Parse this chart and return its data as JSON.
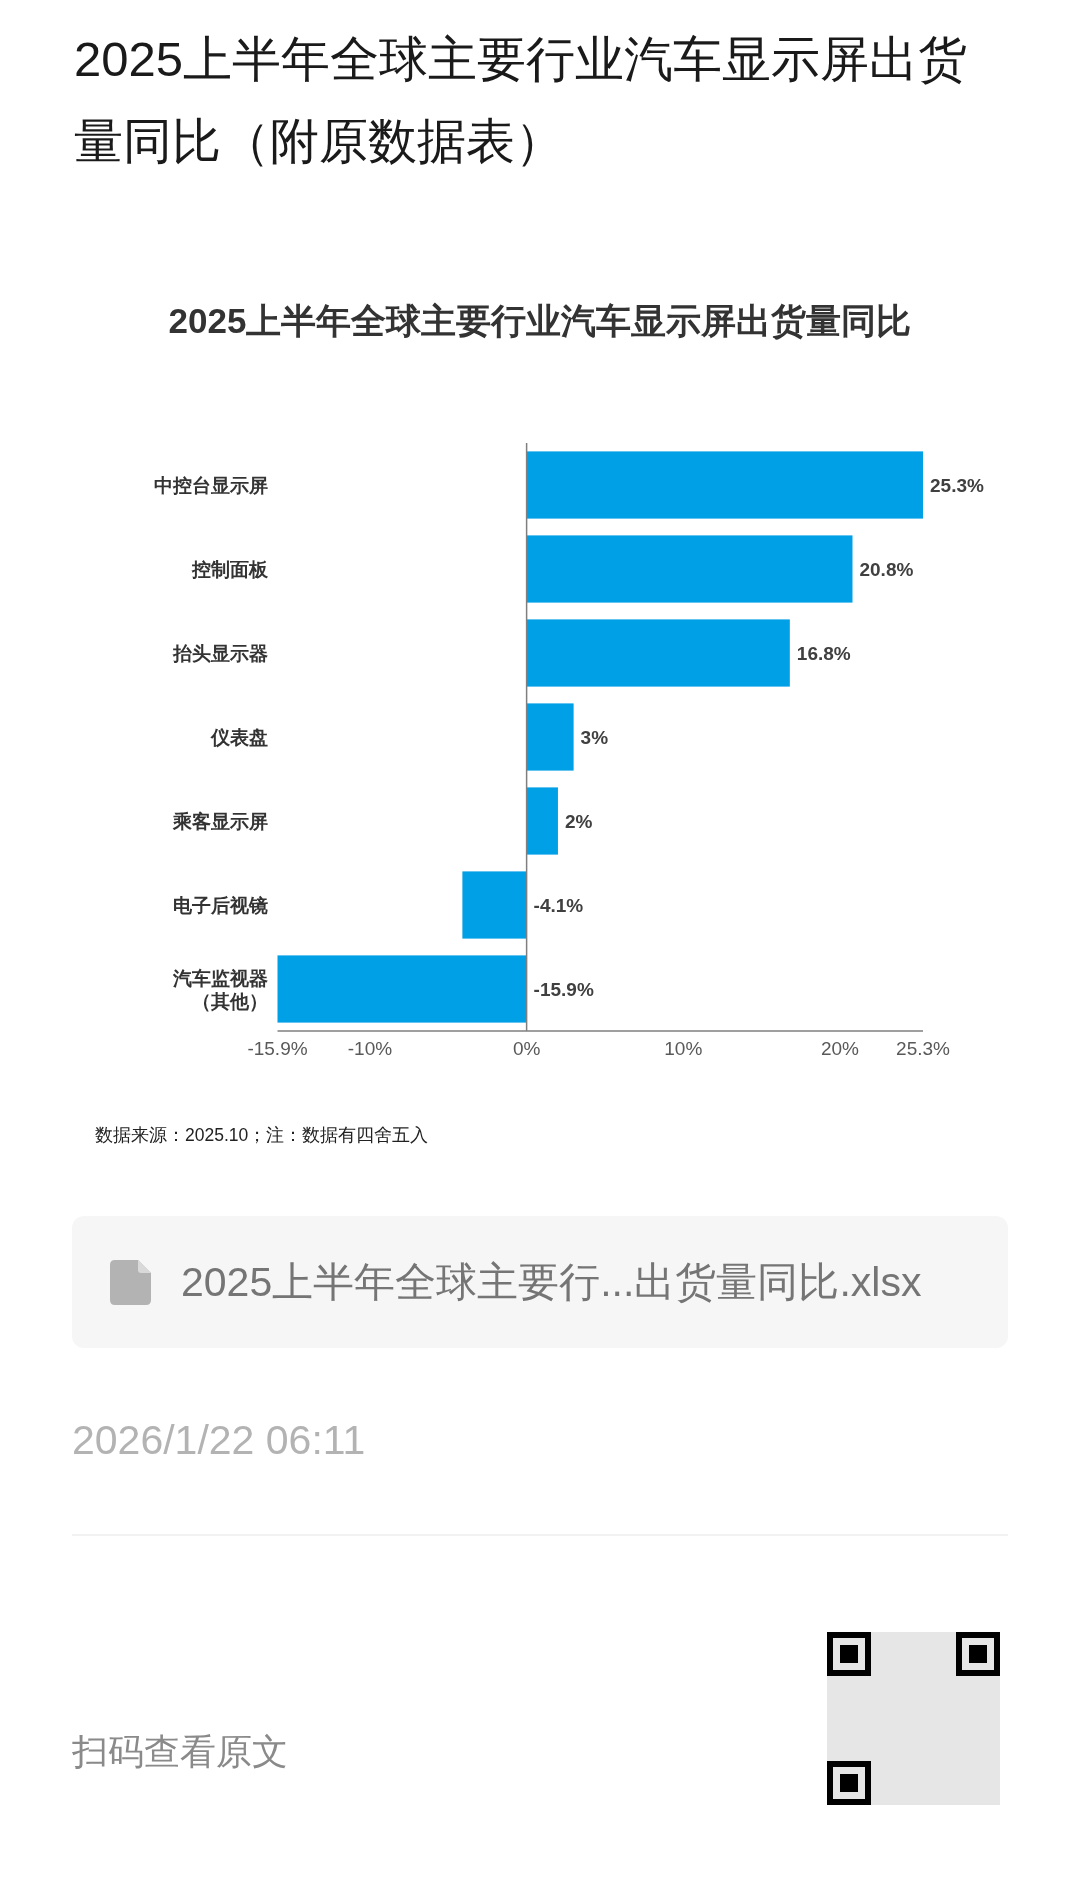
{
  "chart_data": {
    "type": "bar",
    "orientation": "horizontal",
    "title": "2025上半年全球主要行业汽车显示屏出货量同比（附原数据表）",
    "subtitle": "2025上半年全球主要行业汽车显示屏出货量同比",
    "categories": [
      "中控台显示屏",
      "控制面板",
      "抬头显示器",
      "仪表盘",
      "乘客显示屏",
      "电子后视镜",
      "汽车监视器（其他）"
    ],
    "values": [
      25.3,
      20.8,
      16.8,
      3,
      2,
      -4.1,
      -15.9
    ],
    "value_labels": [
      "25.3%",
      "20.8%",
      "16.8%",
      "3%",
      "2%",
      "-4.1%",
      "-15.9%"
    ],
    "color": "#00a0e6",
    "xlim": [
      -15.9,
      25.3
    ],
    "xticks": [
      {
        "value": -15.9,
        "label": "-15.9%"
      },
      {
        "value": -10,
        "label": "-10%"
      },
      {
        "value": 0,
        "label": "0%"
      },
      {
        "value": 10,
        "label": "10%"
      },
      {
        "value": 20,
        "label": "20%"
      },
      {
        "value": 25.3,
        "label": "25.3%"
      }
    ],
    "annotations": [
      "数据来源：2025.10；注：数据有四舍五入",
      "2025上半年全球主要行...出货量同比.xlsx",
      "2026/1/22 06:11",
      "扫码查看原文"
    ]
  }
}
